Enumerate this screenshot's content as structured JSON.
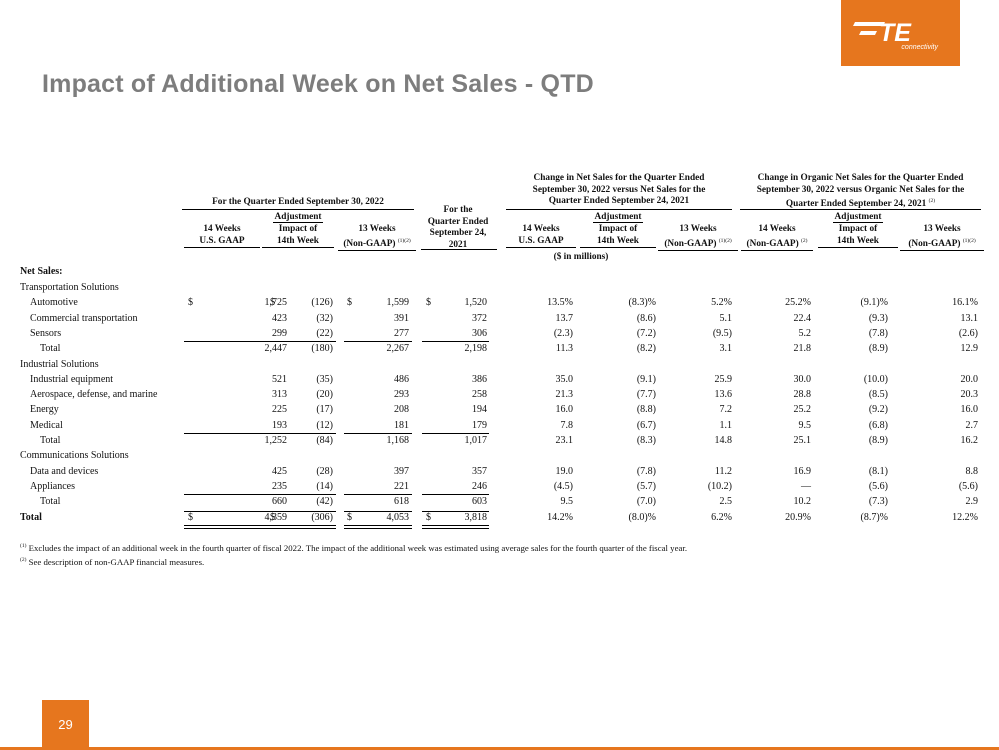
{
  "brand": {
    "logo_text": "TE",
    "logo_subtext": "connectivity",
    "accent": "#e6761e"
  },
  "title": "Impact of Additional Week on Net Sales - QTD",
  "page_number": "29",
  "headers": {
    "group1": "For the Quarter Ended September 30, 2022",
    "group2_l1": "For the",
    "group2_l2": "Quarter Ended",
    "group2_l3": "September 24,",
    "group2_l4": "2021",
    "group3_l1": "Change in Net Sales for the Quarter Ended",
    "group3_l2": "September 30, 2022 versus Net Sales for the",
    "group3_l3": "Quarter Ended September 24, 2021",
    "group4_l1": "Change in Organic Net Sales for the Quarter Ended",
    "group4_l2": "September 30, 2022 versus Organic Net Sales for the",
    "group4_l3": "Quarter Ended September 24, 2021",
    "group4_sup": "(2)",
    "adjustment": "Adjustment",
    "c1_l1": "14 Weeks",
    "c1_l2": "U.S. GAAP",
    "c2_l1": "Impact of",
    "c2_l2": "14th Week",
    "c3_l1": "13 Weeks",
    "c3_l2": "(Non-GAAP)",
    "c3_sup": "(1)(2)",
    "c5_l1": "14 Weeks",
    "c5_l2": "U.S. GAAP",
    "c6_l1": "Impact of",
    "c6_l2": "14th Week",
    "c7_l1": "13 Weeks",
    "c7_l2": "(Non-GAAP)",
    "c7_sup": "(1)(2)",
    "c8_l1": "14 Weeks",
    "c8_l2": "(Non-GAAP)",
    "c8_sup": "(2)",
    "c9_l1": "Impact of",
    "c9_l2": "14th Week",
    "c10_l1": "13 Weeks",
    "c10_l2": "(Non-GAAP)",
    "c10_sup": "(1)(2)",
    "units": "($ in millions)"
  },
  "section_label": "Net Sales:",
  "rows": [
    {
      "label": "Transportation Solutions",
      "type": "seg"
    },
    {
      "label": "Automotive",
      "type": "item",
      "d": "$",
      "v": [
        "1,725",
        "(126)",
        "1,599",
        "1,520",
        "13.5%",
        "(8.3)%",
        "5.2%",
        "25.2%",
        "(9.1)%",
        "16.1%"
      ]
    },
    {
      "label": "Commercial transportation",
      "type": "item",
      "v": [
        "423",
        "(32)",
        "391",
        "372",
        "13.7",
        "(8.6)",
        "5.1",
        "22.4",
        "(9.3)",
        "13.1"
      ]
    },
    {
      "label": "Sensors",
      "type": "item",
      "ul": true,
      "v": [
        "299",
        "(22)",
        "277",
        "306",
        "(2.3)",
        "(7.2)",
        "(9.5)",
        "5.2",
        "(7.8)",
        "(2.6)"
      ]
    },
    {
      "label": "Total",
      "type": "total",
      "v": [
        "2,447",
        "(180)",
        "2,267",
        "2,198",
        "11.3",
        "(8.2)",
        "3.1",
        "21.8",
        "(8.9)",
        "12.9"
      ]
    },
    {
      "label": "Industrial Solutions",
      "type": "seg"
    },
    {
      "label": "Industrial equipment",
      "type": "item",
      "v": [
        "521",
        "(35)",
        "486",
        "386",
        "35.0",
        "(9.1)",
        "25.9",
        "30.0",
        "(10.0)",
        "20.0"
      ]
    },
    {
      "label": "Aerospace, defense, and marine",
      "type": "item",
      "v": [
        "313",
        "(20)",
        "293",
        "258",
        "21.3",
        "(7.7)",
        "13.6",
        "28.8",
        "(8.5)",
        "20.3"
      ]
    },
    {
      "label": "Energy",
      "type": "item",
      "v": [
        "225",
        "(17)",
        "208",
        "194",
        "16.0",
        "(8.8)",
        "7.2",
        "25.2",
        "(9.2)",
        "16.0"
      ]
    },
    {
      "label": "Medical",
      "type": "item",
      "ul": true,
      "v": [
        "193",
        "(12)",
        "181",
        "179",
        "7.8",
        "(6.7)",
        "1.1",
        "9.5",
        "(6.8)",
        "2.7"
      ]
    },
    {
      "label": "Total",
      "type": "total",
      "v": [
        "1,252",
        "(84)",
        "1,168",
        "1,017",
        "23.1",
        "(8.3)",
        "14.8",
        "25.1",
        "(8.9)",
        "16.2"
      ]
    },
    {
      "label": "Communications Solutions",
      "type": "seg"
    },
    {
      "label": "Data and devices",
      "type": "item",
      "v": [
        "425",
        "(28)",
        "397",
        "357",
        "19.0",
        "(7.8)",
        "11.2",
        "16.9",
        "(8.1)",
        "8.8"
      ]
    },
    {
      "label": "Appliances",
      "type": "item",
      "ul": true,
      "v": [
        "235",
        "(14)",
        "221",
        "246",
        "(4.5)",
        "(5.7)",
        "(10.2)",
        "—",
        "(5.6)",
        "(5.6)"
      ]
    },
    {
      "label": "Total",
      "type": "total",
      "v": [
        "660",
        "(42)",
        "618",
        "603",
        "9.5",
        "(7.0)",
        "2.5",
        "10.2",
        "(7.3)",
        "2.9"
      ]
    },
    {
      "label": "Total",
      "type": "grand",
      "d": "$",
      "v": [
        "4,359",
        "(306)",
        "4,053",
        "3,818",
        "14.2%",
        "(8.0)%",
        "6.2%",
        "20.9%",
        "(8.7)%",
        "12.2%"
      ]
    }
  ],
  "footnotes": [
    {
      "mark": "(1)",
      "text": "Excludes the impact of an additional week in the fourth quarter of fiscal 2022. The impact of the additional week was estimated using average sales for the fourth quarter of the fiscal year."
    },
    {
      "mark": "(2)",
      "text": "See description of non-GAAP financial measures."
    }
  ]
}
